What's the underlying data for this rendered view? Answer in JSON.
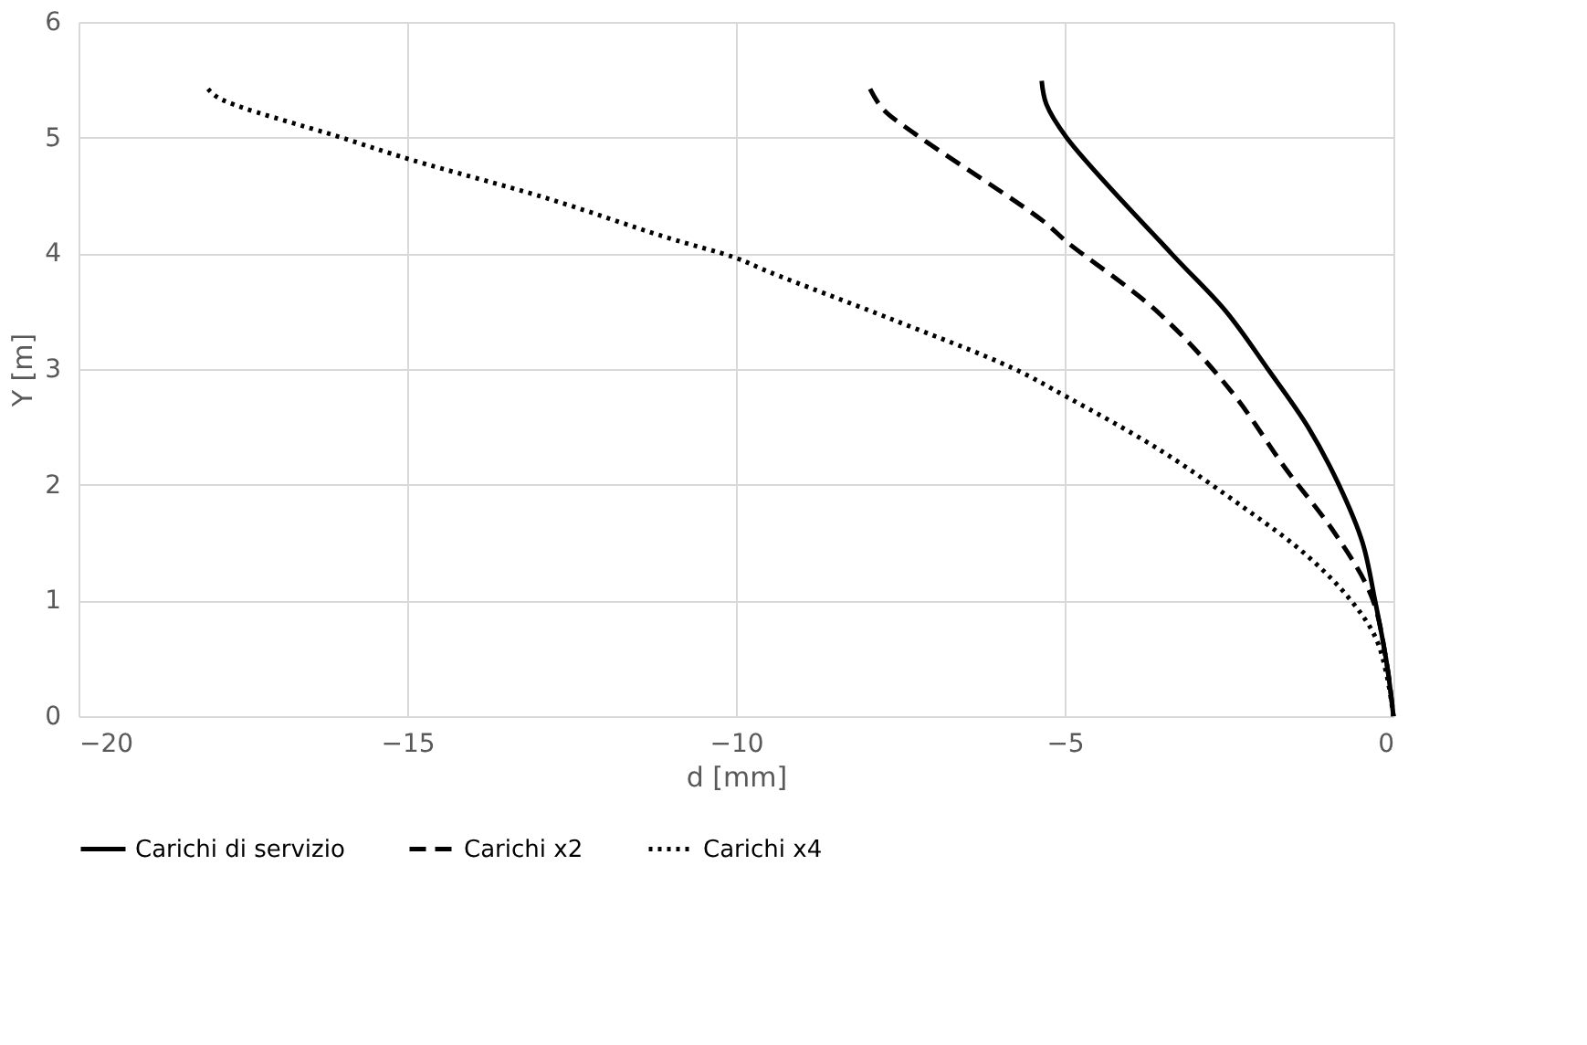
{
  "chart_data": {
    "type": "line",
    "xlabel": "d [mm]",
    "ylabel": "Y [m]",
    "xlim": [
      -20,
      0
    ],
    "xticks": [
      -20,
      -15,
      -10,
      -5,
      0
    ],
    "ylim": [
      0,
      6
    ],
    "yticks": [
      0,
      1,
      2,
      3,
      4,
      5,
      6
    ],
    "grid": true,
    "legend": "bottom",
    "marker": "none",
    "series": [
      {
        "name": "Carichi di servizio",
        "color": "#000000",
        "line_style": "solid",
        "x": [
          -5.35,
          -5.28,
          -4.97,
          -3.38,
          -2.55,
          -1.91,
          -1.3,
          -0.83,
          -0.47,
          -0.28,
          -0.1,
          0
        ],
        "values": [
          5.49,
          5.29,
          5.0,
          4.0,
          3.5,
          3.0,
          2.5,
          2.0,
          1.5,
          1.0,
          0.45,
          0
        ]
      },
      {
        "name": "Carichi x2",
        "color": "#000000",
        "line_style": "dashed",
        "x": [
          -7.96,
          -7.77,
          -7.27,
          -5.33,
          -4.97,
          -3.58,
          -2.47,
          -1.64,
          -0.89,
          -0.33,
          -0.1,
          0
        ],
        "values": [
          5.42,
          5.25,
          5.03,
          4.28,
          4.1,
          3.49,
          2.81,
          2.14,
          1.58,
          1.03,
          0.45,
          0
        ]
      },
      {
        "name": "Carichi x4",
        "color": "#000000",
        "line_style": "dotted",
        "x": [
          -18.03,
          -17.86,
          -16.0,
          -14.95,
          -12.9,
          -11.07,
          -10.0,
          -9.5,
          -7.63,
          -5.8,
          -4.97,
          -3.58,
          -2.27,
          -1.36,
          -0.69,
          -0.28,
          -0.1,
          0
        ],
        "values": [
          5.42,
          5.34,
          5.0,
          4.81,
          4.48,
          4.14,
          3.96,
          3.84,
          3.43,
          3.01,
          2.76,
          2.31,
          1.8,
          1.41,
          1.03,
          0.69,
          0.35,
          0
        ]
      }
    ]
  }
}
